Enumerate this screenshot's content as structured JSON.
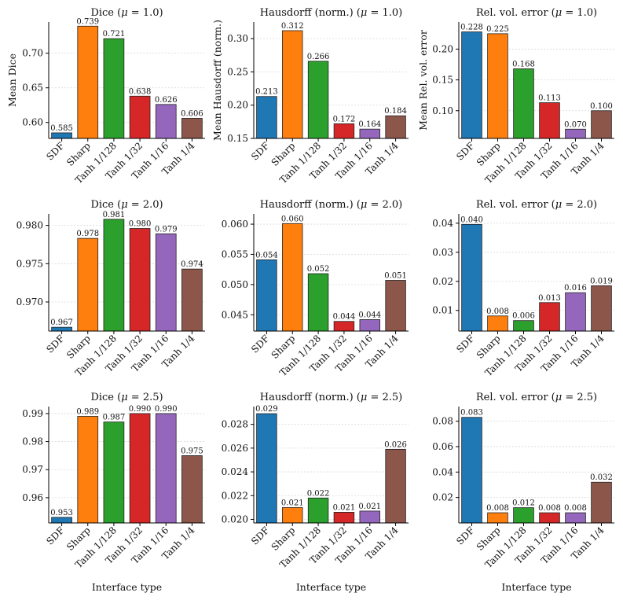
{
  "categories": [
    "SDF",
    "Sharp",
    "Tanh 1/128",
    "Tanh 1/32",
    "Tanh 1/16",
    "Tanh 1/4"
  ],
  "colors": [
    "#1f77b4",
    "#ff7f0e",
    "#2ca02c",
    "#d62728",
    "#9467bd",
    "#8c564b"
  ],
  "xlabel": "Interface type",
  "chart_data": [
    {
      "type": "bar",
      "title": "Dice (μ = 1.0)",
      "ylabel": "Mean Dice",
      "xlabel": "",
      "categories": [
        "SDF",
        "Sharp",
        "Tanh 1/128",
        "Tanh 1/32",
        "Tanh 1/16",
        "Tanh 1/4"
      ],
      "values": [
        0.585,
        0.739,
        0.721,
        0.638,
        0.626,
        0.606
      ],
      "labels": [
        "0.585",
        "0.739",
        "0.721",
        "0.638",
        "0.626",
        "0.606"
      ],
      "ylim": [
        0.577,
        0.745
      ],
      "yticks": [
        0.6,
        0.65,
        0.7
      ],
      "ytick_labels": [
        "0.60",
        "0.65",
        "0.70"
      ],
      "grid": true
    },
    {
      "type": "bar",
      "title": "Hausdorff (norm.) (μ = 1.0)",
      "ylabel": "Mean Hausdorff (norm.)",
      "xlabel": "",
      "categories": [
        "SDF",
        "Sharp",
        "Tanh 1/128",
        "Tanh 1/32",
        "Tanh 1/16",
        "Tanh 1/4"
      ],
      "values": [
        0.213,
        0.312,
        0.266,
        0.172,
        0.164,
        0.184
      ],
      "labels": [
        "0.213",
        "0.312",
        "0.266",
        "0.172",
        "0.164",
        "0.184"
      ],
      "ylim": [
        0.15,
        0.325
      ],
      "yticks": [
        0.15,
        0.2,
        0.25,
        0.3
      ],
      "ytick_labels": [
        "0.15",
        "0.20",
        "0.25",
        "0.30"
      ],
      "grid": true
    },
    {
      "type": "bar",
      "title": "Rel. vol. error (μ = 1.0)",
      "ylabel": "Mean Rel. vol. error",
      "xlabel": "",
      "categories": [
        "SDF",
        "Sharp",
        "Tanh 1/128",
        "Tanh 1/32",
        "Tanh 1/16",
        "Tanh 1/4"
      ],
      "values": [
        0.228,
        0.225,
        0.168,
        0.113,
        0.07,
        0.1
      ],
      "labels": [
        "0.228",
        "0.225",
        "0.168",
        "0.113",
        "0.070",
        "0.100"
      ],
      "ylim": [
        0.055,
        0.244
      ],
      "yticks": [
        0.1,
        0.15,
        0.2
      ],
      "ytick_labels": [
        "0.10",
        "0.15",
        "0.20"
      ],
      "grid": true
    },
    {
      "type": "bar",
      "title": "Dice (μ = 2.0)",
      "ylabel": "",
      "xlabel": "",
      "categories": [
        "SDF",
        "Sharp",
        "Tanh 1/128",
        "Tanh 1/32",
        "Tanh 1/16",
        "Tanh 1/4"
      ],
      "values": [
        0.9667,
        0.9783,
        0.9808,
        0.9796,
        0.9789,
        0.9743
      ],
      "labels": [
        "0.967",
        "0.978",
        "0.981",
        "0.980",
        "0.979",
        "0.974"
      ],
      "ylim": [
        0.9662,
        0.9815
      ],
      "yticks": [
        0.97,
        0.975,
        0.98
      ],
      "ytick_labels": [
        "0.970",
        "0.975",
        "0.980"
      ],
      "grid": true
    },
    {
      "type": "bar",
      "title": "Hausdorff (norm.) (μ = 2.0)",
      "ylabel": "",
      "xlabel": "",
      "categories": [
        "SDF",
        "Sharp",
        "Tanh 1/128",
        "Tanh 1/32",
        "Tanh 1/16",
        "Tanh 1/4"
      ],
      "values": [
        0.0541,
        0.0601,
        0.0518,
        0.0439,
        0.0442,
        0.0507
      ],
      "labels": [
        "0.054",
        "0.060",
        "0.052",
        "0.044",
        "0.044",
        "0.051"
      ],
      "ylim": [
        0.0423,
        0.0617
      ],
      "yticks": [
        0.045,
        0.05,
        0.055,
        0.06
      ],
      "ytick_labels": [
        "0.045",
        "0.050",
        "0.055",
        "0.060"
      ],
      "grid": true
    },
    {
      "type": "bar",
      "title": "Rel. vol. error (μ = 2.0)",
      "ylabel": "",
      "xlabel": "",
      "categories": [
        "SDF",
        "Sharp",
        "Tanh 1/128",
        "Tanh 1/32",
        "Tanh 1/16",
        "Tanh 1/4"
      ],
      "values": [
        0.0396,
        0.0081,
        0.0065,
        0.0127,
        0.0161,
        0.0185
      ],
      "labels": [
        "0.040",
        "0.008",
        "0.006",
        "0.013",
        "0.016",
        "0.019"
      ],
      "ylim": [
        0.0029,
        0.0432
      ],
      "yticks": [
        0.01,
        0.02,
        0.03,
        0.04
      ],
      "ytick_labels": [
        "0.01",
        "0.02",
        "0.03",
        "0.04"
      ],
      "grid": true
    },
    {
      "type": "bar",
      "title": "Dice (μ = 2.5)",
      "ylabel": "",
      "xlabel": "Interface type",
      "categories": [
        "SDF",
        "Sharp",
        "Tanh 1/128",
        "Tanh 1/32",
        "Tanh 1/16",
        "Tanh 1/4"
      ],
      "values": [
        0.953,
        0.989,
        0.987,
        0.99,
        0.99,
        0.975
      ],
      "labels": [
        "0.953",
        "0.989",
        "0.987",
        "0.990",
        "0.990",
        "0.975"
      ],
      "ylim": [
        0.951,
        0.9925
      ],
      "yticks": [
        0.96,
        0.97,
        0.98,
        0.99
      ],
      "ytick_labels": [
        "0.96",
        "0.97",
        "0.98",
        "0.99"
      ],
      "grid": true
    },
    {
      "type": "bar",
      "title": "Hausdorff (norm.) (μ = 2.5)",
      "ylabel": "",
      "xlabel": "Interface type",
      "categories": [
        "SDF",
        "Sharp",
        "Tanh 1/128",
        "Tanh 1/32",
        "Tanh 1/16",
        "Tanh 1/4"
      ],
      "values": [
        0.0289,
        0.021,
        0.0218,
        0.0206,
        0.0207,
        0.0259
      ],
      "labels": [
        "0.029",
        "0.021",
        "0.022",
        "0.021",
        "0.021",
        "0.026"
      ],
      "ylim": [
        0.0197,
        0.0295
      ],
      "yticks": [
        0.02,
        0.022,
        0.024,
        0.026,
        0.028
      ],
      "ytick_labels": [
        "0.020",
        "0.022",
        "0.024",
        "0.026",
        "0.028"
      ],
      "grid": true
    },
    {
      "type": "bar",
      "title": "Rel. vol. error (μ = 2.5)",
      "ylabel": "",
      "xlabel": "Interface type",
      "categories": [
        "SDF",
        "Sharp",
        "Tanh 1/128",
        "Tanh 1/32",
        "Tanh 1/16",
        "Tanh 1/4"
      ],
      "values": [
        0.083,
        0.008,
        0.012,
        0.008,
        0.008,
        0.032
      ],
      "labels": [
        "0.083",
        "0.008",
        "0.012",
        "0.008",
        "0.008",
        "0.032"
      ],
      "ylim": [
        0.0,
        0.0915
      ],
      "yticks": [
        0.02,
        0.04,
        0.06,
        0.08
      ],
      "ytick_labels": [
        "0.02",
        "0.04",
        "0.06",
        "0.08"
      ],
      "grid": true
    }
  ]
}
